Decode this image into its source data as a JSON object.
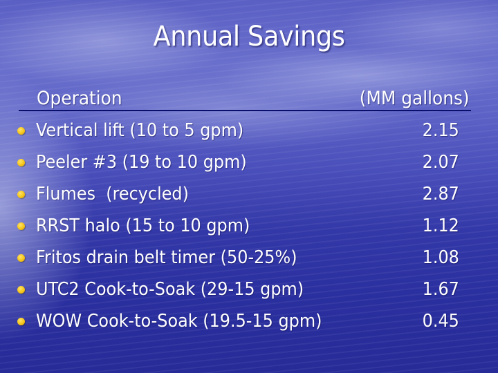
{
  "slide": {
    "title": "Annual Savings",
    "header": {
      "left": "Operation",
      "right": "(MM gallons)"
    },
    "rows": [
      {
        "label": "Vertical lift (10 to 5 gpm)",
        "value": "2.15"
      },
      {
        "label": "Peeler #3 (19 to 10 gpm)",
        "value": "2.07"
      },
      {
        "label": "Flumes  (recycled)",
        "value": "2.87"
      },
      {
        "label": "RRST halo (15 to 10 gpm)",
        "value": "1.12"
      },
      {
        "label": "Fritos drain belt timer (50-25%)",
        "value": "1.08"
      },
      {
        "label": "UTC2 Cook-to-Soak (29-15 gpm)",
        "value": "1.67"
      },
      {
        "label": "WOW Cook-to-Soak (19.5-15 gpm)",
        "value": "0.45"
      }
    ],
    "colors": {
      "background_top": "#5a5fc4",
      "background_bottom": "#272b98",
      "text": "#ffffff",
      "bullet": "#f5c518",
      "header_underline": "#0a0f6b"
    },
    "bullet_icon": "yellow-dot"
  }
}
